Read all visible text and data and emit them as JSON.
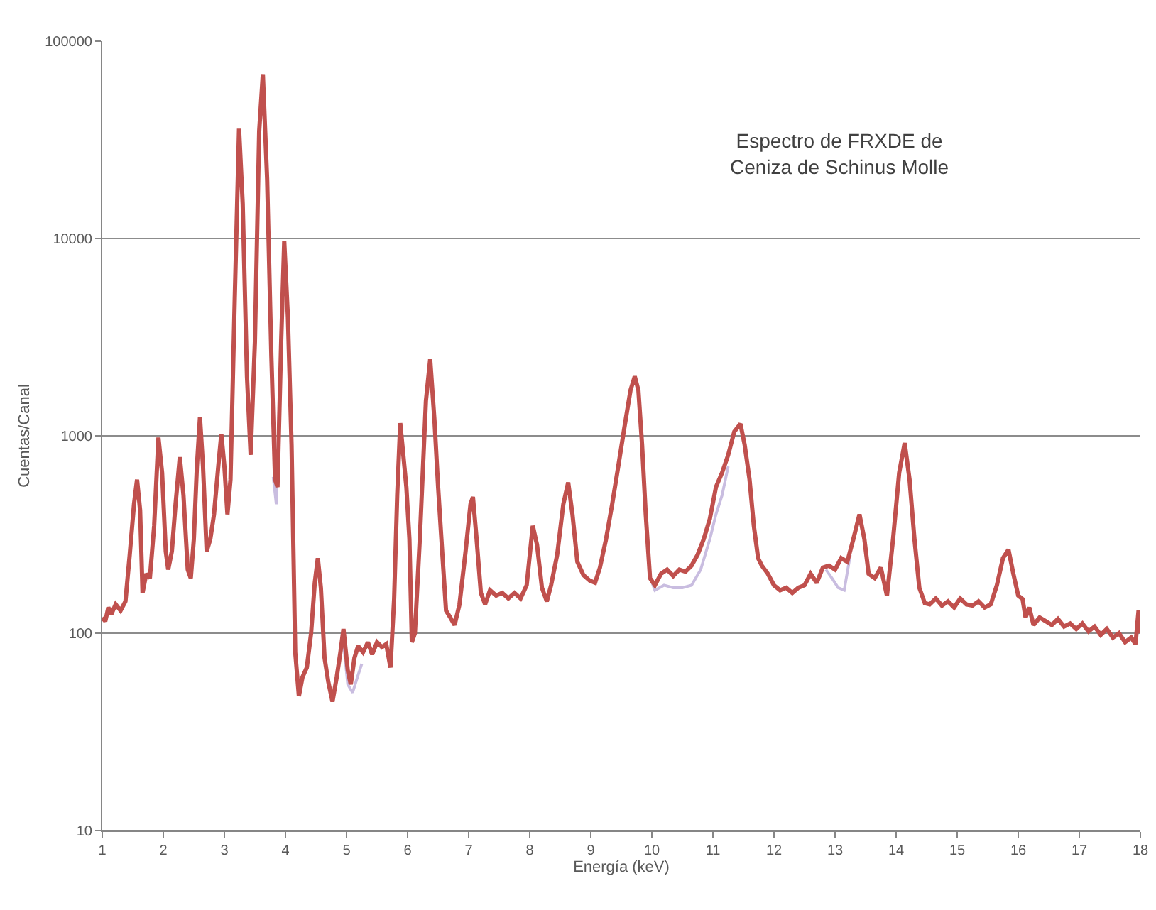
{
  "chart_data": {
    "type": "line",
    "title": "Espectro de FRXDE de\nCeniza de Schinus Molle",
    "xlabel": "Energía (keV)",
    "ylabel": "Cuentas/Canal",
    "log": "y",
    "grid": "y",
    "marker": "none",
    "line_style": "solid",
    "xlim": [
      1,
      18
    ],
    "xticks": [
      1,
      2,
      3,
      4,
      5,
      6,
      7,
      8,
      9,
      10,
      11,
      12,
      13,
      14,
      15,
      16,
      17,
      18
    ],
    "ylim": [
      10,
      100000
    ],
    "yticks": [
      10,
      100,
      1000,
      10000,
      100000
    ],
    "series": [
      {
        "color": "#c9bde0",
        "x": [
          3.8,
          3.85,
          3.9,
          4.4,
          4.88,
          4.95,
          5.02,
          5.1,
          5.18,
          5.25,
          7.0,
          9.95,
          10.05,
          10.2,
          10.35,
          10.5,
          10.65,
          10.8,
          10.95,
          11.05,
          11.15,
          11.25,
          12.0,
          12.85,
          12.95,
          13.05,
          13.15,
          13.25
        ],
        "values": [
          620,
          450,
          1500,
          null,
          75,
          90,
          55,
          50,
          60,
          70,
          null,
          200,
          165,
          175,
          170,
          170,
          175,
          210,
          300,
          400,
          500,
          700,
          null,
          210,
          190,
          170,
          165,
          250
        ]
      },
      {
        "color": "#c0504d",
        "x": [
          1.0,
          1.05,
          1.1,
          1.15,
          1.22,
          1.3,
          1.38,
          1.45,
          1.52,
          1.57,
          1.62,
          1.66,
          1.72,
          1.78,
          1.85,
          1.92,
          1.98,
          2.04,
          2.08,
          2.14,
          2.2,
          2.27,
          2.33,
          2.4,
          2.45,
          2.5,
          2.55,
          2.6,
          2.65,
          2.71,
          2.77,
          2.83,
          2.9,
          2.95,
          3.0,
          3.05,
          3.1,
          3.17,
          3.24,
          3.3,
          3.37,
          3.43,
          3.5,
          3.57,
          3.63,
          3.7,
          3.77,
          3.83,
          3.87,
          3.93,
          3.98,
          4.04,
          4.1,
          4.16,
          4.22,
          4.28,
          4.35,
          4.42,
          4.48,
          4.53,
          4.58,
          4.64,
          4.7,
          4.77,
          4.84,
          4.9,
          4.95,
          5.02,
          5.07,
          5.13,
          5.19,
          5.27,
          5.35,
          5.42,
          5.5,
          5.58,
          5.65,
          5.72,
          5.78,
          5.83,
          5.88,
          5.93,
          5.98,
          6.03,
          6.07,
          6.12,
          6.2,
          6.3,
          6.37,
          6.44,
          6.5,
          6.57,
          6.63,
          6.7,
          6.77,
          6.85,
          6.95,
          7.03,
          7.07,
          7.13,
          7.2,
          7.27,
          7.35,
          7.45,
          7.55,
          7.65,
          7.75,
          7.85,
          7.95,
          8.05,
          8.12,
          8.2,
          8.28,
          8.35,
          8.45,
          8.55,
          8.63,
          8.7,
          8.78,
          8.88,
          8.98,
          9.07,
          9.15,
          9.25,
          9.35,
          9.45,
          9.55,
          9.65,
          9.72,
          9.78,
          9.84,
          9.9,
          9.97,
          10.05,
          10.15,
          10.25,
          10.35,
          10.45,
          10.55,
          10.65,
          10.75,
          10.85,
          10.95,
          11.05,
          11.15,
          11.25,
          11.35,
          11.45,
          11.52,
          11.6,
          11.67,
          11.74,
          11.8,
          11.9,
          12.0,
          12.1,
          12.2,
          12.3,
          12.4,
          12.5,
          12.6,
          12.7,
          12.8,
          12.9,
          13.0,
          13.1,
          13.2,
          13.3,
          13.4,
          13.48,
          13.55,
          13.65,
          13.75,
          13.85,
          13.95,
          14.05,
          14.14,
          14.22,
          14.3,
          14.38,
          14.47,
          14.55,
          14.65,
          14.75,
          14.85,
          14.95,
          15.05,
          15.15,
          15.25,
          15.35,
          15.45,
          15.55,
          15.65,
          15.75,
          15.84,
          15.92,
          16.0,
          16.07,
          16.12,
          16.18,
          16.25,
          16.35,
          16.45,
          16.55,
          16.65,
          16.75,
          16.85,
          16.95,
          17.05,
          17.15,
          17.25,
          17.35,
          17.45,
          17.55,
          17.65,
          17.75,
          17.85,
          17.92,
          17.97,
          18.0
        ],
        "values": [
          120,
          115,
          135,
          125,
          140,
          130,
          145,
          250,
          450,
          600,
          420,
          160,
          200,
          190,
          350,
          980,
          650,
          260,
          210,
          260,
          450,
          780,
          500,
          210,
          190,
          300,
          700,
          1240,
          700,
          260,
          300,
          400,
          700,
          1020,
          700,
          400,
          600,
          5000,
          36000,
          15000,
          2000,
          800,
          3000,
          35000,
          68000,
          20000,
          2500,
          600,
          550,
          3000,
          9700,
          4000,
          900,
          80,
          48,
          60,
          67,
          100,
          180,
          240,
          170,
          75,
          57,
          45,
          60,
          80,
          105,
          65,
          55,
          75,
          86,
          80,
          90,
          78,
          90,
          85,
          88,
          67,
          150,
          500,
          1160,
          800,
          550,
          300,
          90,
          100,
          300,
          1500,
          2440,
          1200,
          550,
          250,
          130,
          120,
          110,
          140,
          260,
          450,
          490,
          300,
          160,
          140,
          165,
          155,
          160,
          150,
          160,
          150,
          175,
          350,
          280,
          170,
          145,
          175,
          250,
          450,
          580,
          400,
          230,
          197,
          185,
          180,
          215,
          300,
          450,
          700,
          1100,
          1700,
          2000,
          1700,
          900,
          400,
          190,
          175,
          200,
          210,
          195,
          210,
          205,
          220,
          250,
          300,
          380,
          550,
          650,
          800,
          1050,
          1150,
          900,
          600,
          350,
          240,
          220,
          200,
          175,
          165,
          170,
          160,
          170,
          175,
          200,
          180,
          215,
          220,
          210,
          240,
          230,
          300,
          400,
          300,
          200,
          190,
          215,
          155,
          300,
          650,
          920,
          600,
          300,
          170,
          142,
          140,
          150,
          138,
          145,
          135,
          150,
          140,
          138,
          145,
          135,
          140,
          175,
          240,
          265,
          200,
          155,
          149,
          120,
          135,
          110,
          120,
          115,
          110,
          118,
          108,
          112,
          105,
          112,
          102,
          108,
          98,
          105,
          95,
          100,
          90,
          95,
          88,
          130,
          100
        ]
      }
    ]
  }
}
